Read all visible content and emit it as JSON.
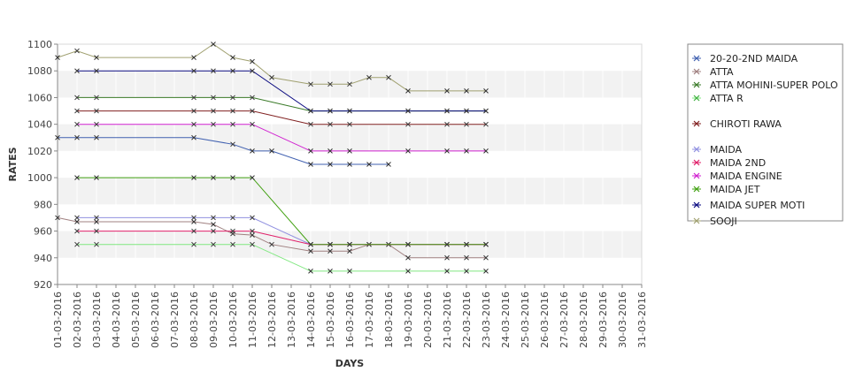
{
  "chart_data": {
    "type": "line",
    "title": "",
    "xlabel": "DAYS",
    "ylabel": "RATES",
    "ylim": [
      920,
      1100
    ],
    "yticks": [
      920,
      940,
      960,
      980,
      1000,
      1020,
      1040,
      1060,
      1080,
      1100
    ],
    "grid": "alternating horizontal bands",
    "legend_placement": "right",
    "categories": [
      "01-03-2016",
      "02-03-2016",
      "03-03-2016",
      "04-03-2016",
      "05-03-2016",
      "06-03-2016",
      "07-03-2016",
      "08-03-2016",
      "09-03-2016",
      "10-03-2016",
      "11-03-2016",
      "12-03-2016",
      "13-03-2016",
      "14-03-2016",
      "15-03-2016",
      "16-03-2016",
      "17-03-2016",
      "18-03-2016",
      "19-03-2016",
      "20-03-2016",
      "21-03-2016",
      "22-03-2016",
      "23-03-2016",
      "24-03-2016",
      "25-03-2016",
      "26-03-2016",
      "27-03-2016",
      "28-03-2016",
      "29-03-2016",
      "30-03-2016",
      "31-03-2016"
    ],
    "series": [
      {
        "name": "20-20-2ND MAIDA",
        "color": "#4060b0",
        "values": [
          1030,
          1030,
          1030,
          null,
          null,
          null,
          null,
          1030,
          null,
          1025,
          1020,
          1020,
          null,
          1010,
          1010,
          1010,
          1010,
          1010,
          null,
          null,
          null,
          null,
          null,
          null,
          null,
          null,
          null,
          null,
          null,
          null,
          null
        ]
      },
      {
        "name": "ATTA",
        "color": "#a08080",
        "values": [
          970,
          967,
          967,
          null,
          null,
          null,
          null,
          967,
          965,
          958,
          957,
          950,
          null,
          945,
          945,
          945,
          950,
          950,
          940,
          null,
          940,
          940,
          940,
          null,
          null,
          null,
          null,
          null,
          null,
          null,
          null
        ]
      },
      {
        "name": "ATTA MOHINI-SUPER POLO",
        "color": "#3a7a28",
        "values": [
          null,
          1060,
          1060,
          null,
          null,
          null,
          null,
          1060,
          1060,
          1060,
          1060,
          null,
          null,
          1050,
          1050,
          1050,
          null,
          null,
          1050,
          null,
          1050,
          1050,
          1050,
          null,
          null,
          null,
          null,
          null,
          null,
          null,
          null
        ]
      },
      {
        "name": "ATTA R",
        "color": "#80e880",
        "values": [
          null,
          950,
          950,
          null,
          null,
          null,
          null,
          950,
          950,
          950,
          950,
          null,
          null,
          930,
          930,
          930,
          null,
          null,
          930,
          null,
          930,
          930,
          930,
          null,
          null,
          null,
          null,
          null,
          null,
          null,
          null
        ]
      },
      {
        "name": "CHIROTI RAWA",
        "color": "#802020",
        "values": [
          null,
          1050,
          1050,
          null,
          null,
          null,
          null,
          1050,
          1050,
          1050,
          1050,
          null,
          null,
          1040,
          1040,
          1040,
          null,
          null,
          1040,
          null,
          1040,
          1040,
          1040,
          null,
          null,
          null,
          null,
          null,
          null,
          null,
          null
        ]
      },
      {
        "name": "MAIDA",
        "color": "#9090e0",
        "values": [
          null,
          970,
          970,
          null,
          null,
          null,
          null,
          970,
          970,
          970,
          970,
          null,
          null,
          950,
          950,
          950,
          950,
          950,
          950,
          null,
          950,
          950,
          950,
          null,
          null,
          null,
          null,
          null,
          null,
          null,
          null
        ]
      },
      {
        "name": "MAIDA 2ND",
        "color": "#e0206a",
        "values": [
          null,
          960,
          960,
          null,
          null,
          null,
          null,
          960,
          960,
          960,
          960,
          null,
          null,
          950,
          950,
          950,
          null,
          null,
          950,
          null,
          950,
          950,
          950,
          null,
          null,
          null,
          null,
          null,
          null,
          null,
          null
        ]
      },
      {
        "name": "MAIDA ENGINE",
        "color": "#d020d0",
        "values": [
          null,
          1040,
          1040,
          null,
          null,
          null,
          null,
          1040,
          1040,
          1040,
          1040,
          null,
          null,
          1020,
          1020,
          1020,
          null,
          null,
          1020,
          null,
          1020,
          1020,
          1020,
          null,
          null,
          null,
          null,
          null,
          null,
          null,
          null
        ]
      },
      {
        "name": "MAIDA JET",
        "color": "#40a010",
        "values": [
          null,
          1000,
          1000,
          null,
          null,
          null,
          null,
          1000,
          1000,
          1000,
          1000,
          null,
          null,
          950,
          950,
          950,
          null,
          null,
          950,
          null,
          950,
          950,
          950,
          null,
          null,
          null,
          null,
          null,
          null,
          null,
          null
        ]
      },
      {
        "name": "MAIDA SUPER MOTI",
        "color": "#0a0a80",
        "values": [
          null,
          1080,
          1080,
          null,
          null,
          null,
          null,
          1080,
          1080,
          1080,
          1080,
          null,
          null,
          1050,
          1050,
          1050,
          null,
          null,
          1050,
          null,
          1050,
          1050,
          1050,
          null,
          null,
          null,
          null,
          null,
          null,
          null,
          null
        ]
      },
      {
        "name": "SOOJI",
        "color": "#a0a070",
        "values": [
          1090,
          1095,
          1090,
          null,
          null,
          null,
          null,
          1090,
          1100,
          1090,
          1087,
          1075,
          null,
          1070,
          1070,
          1070,
          1075,
          1075,
          1065,
          null,
          1065,
          1065,
          1065,
          null,
          null,
          null,
          null,
          null,
          null,
          null,
          null
        ]
      }
    ]
  }
}
